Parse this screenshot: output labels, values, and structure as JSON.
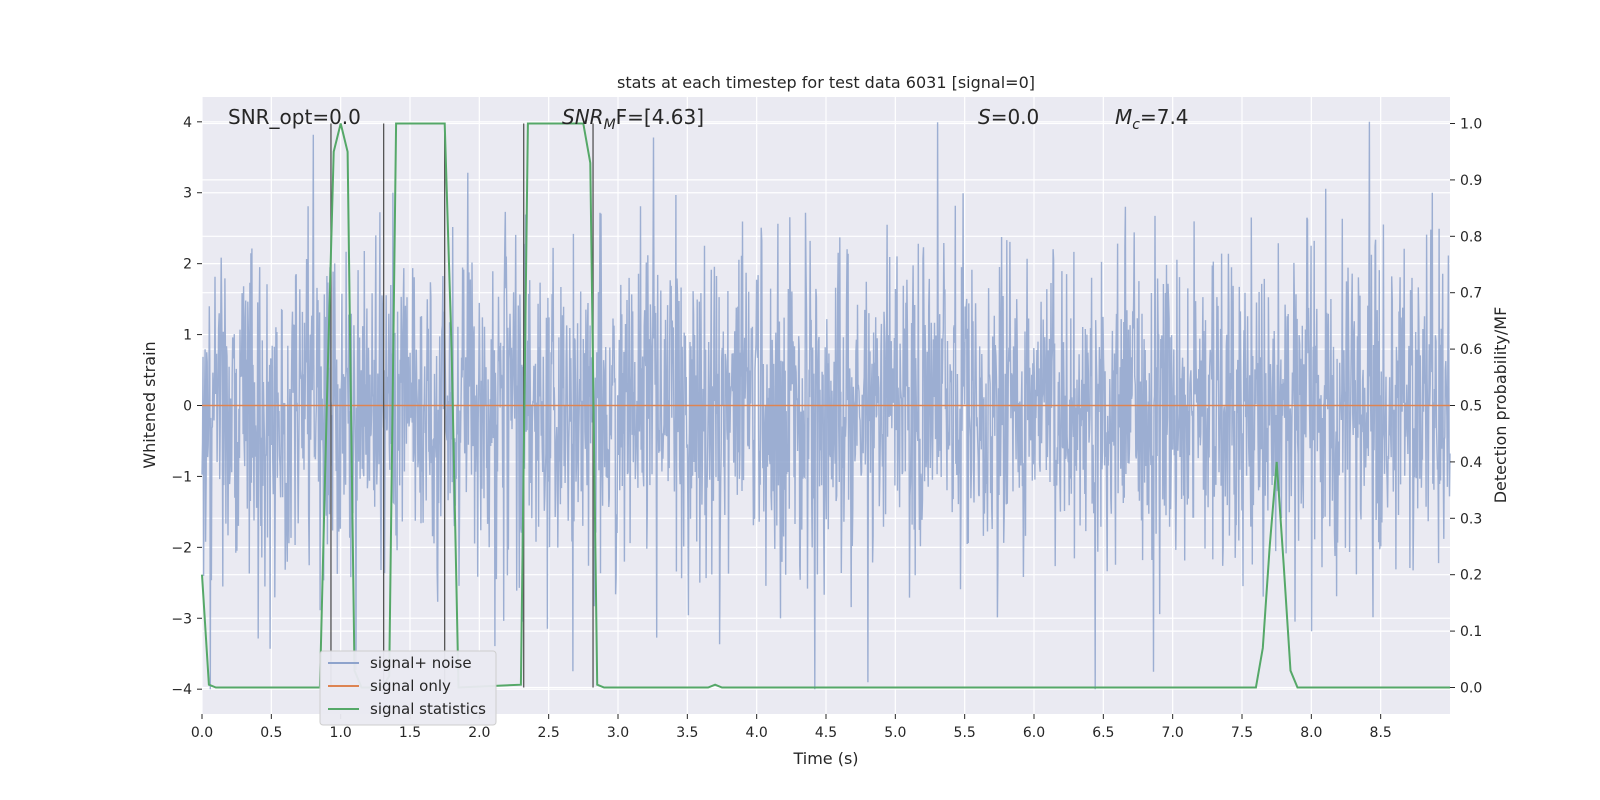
{
  "chart_data": {
    "type": "line",
    "title": "stats at each timestep for test data 6031 [signal=0]",
    "xlabel": "Time (s)",
    "ylabel_left": "Whitened strain",
    "ylabel_right": "Detection probability/MF",
    "xlim": [
      0.0,
      9.0
    ],
    "ylim_left": [
      -4.35,
      4.35
    ],
    "ylim_right": [
      -0.047,
      1.047
    ],
    "x_ticks": [
      "0.0",
      "0.5",
      "1.0",
      "1.5",
      "2.0",
      "2.5",
      "3.0",
      "3.5",
      "4.0",
      "4.5",
      "5.0",
      "5.5",
      "6.0",
      "6.5",
      "7.0",
      "7.5",
      "8.0",
      "8.5"
    ],
    "y_ticks_left": [
      "4",
      "3",
      "2",
      "1",
      "0",
      "−1",
      "−2",
      "−3",
      "−4"
    ],
    "y_ticks_right": [
      "1.0",
      "0.9",
      "0.8",
      "0.7",
      "0.6",
      "0.5",
      "0.4",
      "0.3",
      "0.2",
      "0.1",
      "0.0"
    ],
    "grid": true,
    "legend_position": "lower-left",
    "annotations": {
      "snr_opt": "SNR_opt=0.0",
      "snr_mf_main": "SNR",
      "snr_mf_sub": "M",
      "snr_mf_rest": "F=[4.63]",
      "s_main": "S",
      "s_rest": "=0.0",
      "mc_main": "M",
      "mc_sub": "c",
      "mc_rest": "=7.4"
    },
    "series": [
      {
        "name": "signal+ noise",
        "color": "#8ea3cc",
        "description_values": "whitened noise, roughly within [-4, 4]"
      },
      {
        "name": "signal only",
        "color": "#dd8452",
        "values_constant": 0.0
      },
      {
        "name": "signal statistics",
        "color": "#55a868",
        "x": [
          0.0,
          0.05,
          0.1,
          0.15,
          0.85,
          0.9,
          0.95,
          1.0,
          1.05,
          1.1,
          1.15,
          1.3,
          1.35,
          1.4,
          1.45,
          1.7,
          1.75,
          1.8,
          1.85,
          2.3,
          2.35,
          2.4,
          2.7,
          2.75,
          2.8,
          2.85,
          2.9,
          3.65,
          3.7,
          3.75,
          3.8,
          7.6,
          7.65,
          7.7,
          7.75,
          7.8,
          7.85,
          7.9,
          9.0
        ],
        "values": [
          0.2,
          0.005,
          0.0,
          0.0,
          0.0,
          0.5,
          0.95,
          1.0,
          0.95,
          0.03,
          0.0,
          0.0,
          0.02,
          1.0,
          1.0,
          1.0,
          1.0,
          0.6,
          0.0,
          0.005,
          1.0,
          1.0,
          1.0,
          1.0,
          0.93,
          0.005,
          0.0,
          0.0,
          0.005,
          0.0,
          0.0,
          0.0,
          0.07,
          0.25,
          0.4,
          0.22,
          0.03,
          0.0,
          0.0
        ]
      },
      {
        "name": "detection markers",
        "color": "#555555",
        "x": [
          0.93,
          1.31,
          1.75,
          2.32,
          2.82
        ]
      }
    ]
  },
  "legend": {
    "items": [
      "signal+ noise",
      "signal only",
      "signal statistics"
    ]
  }
}
